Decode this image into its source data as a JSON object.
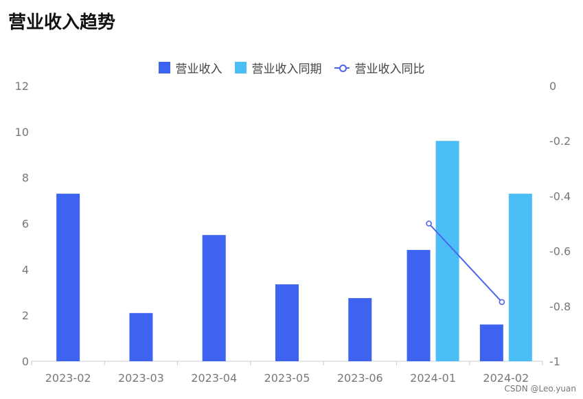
{
  "header": {
    "title": "营业收入趋势"
  },
  "legend": {
    "items": [
      {
        "label": "营业收入",
        "color": "#3d63f0",
        "kind": "bar"
      },
      {
        "label": "营业收入同期",
        "color": "#4bbff5",
        "kind": "bar"
      },
      {
        "label": "营业收入同比",
        "color": "#4b63f0",
        "kind": "line"
      }
    ]
  },
  "watermark": "CSDN @Leo.yuan",
  "chart_data": {
    "type": "bar",
    "title": "营业收入趋势",
    "categories": [
      "2023-02",
      "2023-03",
      "2023-04",
      "2023-05",
      "2023-06",
      "2024-01",
      "2024-02"
    ],
    "series": [
      {
        "name": "营业收入",
        "type": "bar",
        "axis": "left",
        "color": "#3d63f0",
        "values": [
          7.3,
          2.1,
          5.5,
          3.35,
          2.75,
          4.85,
          1.6
        ]
      },
      {
        "name": "营业收入同期",
        "type": "bar",
        "axis": "left",
        "color": "#4bbff5",
        "values": [
          null,
          null,
          null,
          null,
          null,
          9.6,
          7.3
        ]
      },
      {
        "name": "营业收入同比",
        "type": "line",
        "axis": "right",
        "color": "#4b63f0",
        "values": [
          null,
          null,
          null,
          null,
          null,
          -0.5,
          -0.785
        ]
      }
    ],
    "left_axis": {
      "ylim": [
        0,
        12
      ],
      "ticks": [
        0,
        2,
        4,
        6,
        8,
        10,
        12
      ]
    },
    "right_axis": {
      "ylim": [
        -1,
        0
      ],
      "ticks": [
        "0",
        "-0.2",
        "-0.4",
        "-0.6",
        "-0.8",
        "-1"
      ]
    },
    "legend_position": "top-center",
    "grid": false
  }
}
